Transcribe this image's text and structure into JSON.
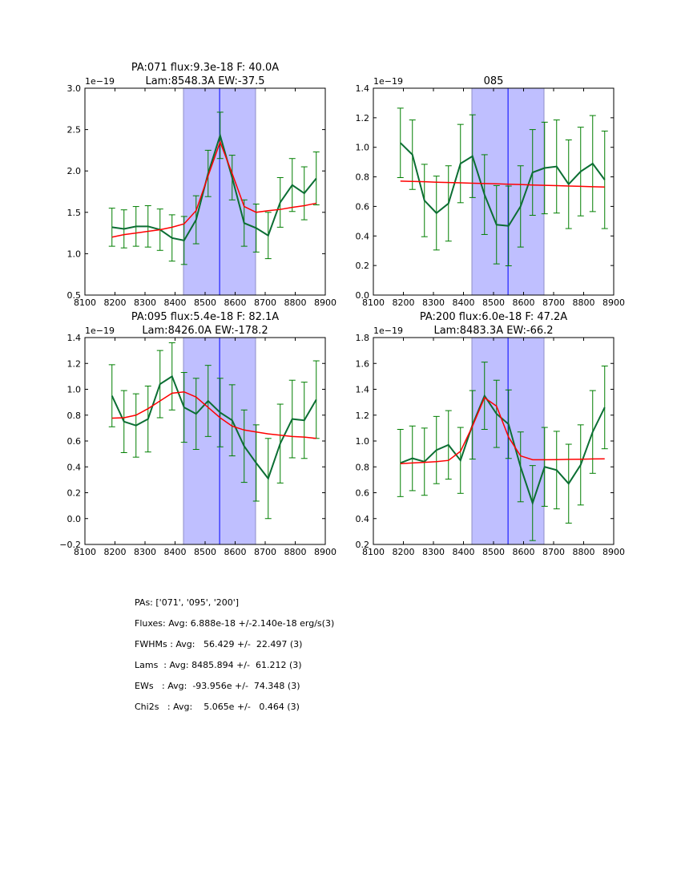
{
  "chart_data": [
    {
      "type": "line",
      "title": "PA:071 flux:9.3e-18 F: 40.0A\nLam:8548.3A EW:-37.5",
      "title_lines": [
        "PA:071 flux:9.3e-18 F: 40.0A",
        "Lam:8548.3A EW:-37.5"
      ],
      "offset_label": "1e−19",
      "xlim": [
        8100,
        8900
      ],
      "ylim": [
        0.5,
        3.0
      ],
      "xticks": [
        8100,
        8200,
        8300,
        8400,
        8500,
        8600,
        8700,
        8800,
        8900
      ],
      "yticks": [
        0.5,
        1.0,
        1.5,
        2.0,
        2.5,
        3.0
      ],
      "ytick_labels": [
        "0.5",
        "1.0",
        "1.5",
        "2.0",
        "2.5",
        "3.0"
      ],
      "line_center": 8548.3,
      "shade_range": [
        8428,
        8668
      ],
      "x": [
        8190,
        8230,
        8270,
        8310,
        8350,
        8390,
        8430,
        8470,
        8510,
        8550,
        8590,
        8630,
        8670,
        8710,
        8750,
        8790,
        8830,
        8870
      ],
      "series": [
        {
          "name": "data",
          "color": "#0b6e33",
          "values": [
            1.32,
            1.3,
            1.33,
            1.33,
            1.29,
            1.19,
            1.16,
            1.41,
            1.97,
            2.43,
            1.92,
            1.37,
            1.31,
            1.22,
            1.62,
            1.83,
            1.73,
            1.91
          ],
          "yerr": [
            0.23,
            0.23,
            0.24,
            0.25,
            0.25,
            0.28,
            0.29,
            0.29,
            0.28,
            0.28,
            0.27,
            0.28,
            0.29,
            0.28,
            0.3,
            0.32,
            0.32,
            0.32
          ]
        },
        {
          "name": "fit",
          "color": "#ff0000",
          "values": [
            1.2,
            1.23,
            1.25,
            1.27,
            1.29,
            1.32,
            1.36,
            1.52,
            1.94,
            2.35,
            1.97,
            1.57,
            1.5,
            1.52,
            1.535,
            1.56,
            1.58,
            1.61
          ]
        }
      ]
    },
    {
      "type": "line",
      "title": "085",
      "title_lines": [
        "085"
      ],
      "offset_label": "1e−19",
      "xlim": [
        8100,
        8900
      ],
      "ylim": [
        0.0,
        1.4
      ],
      "xticks": [
        8100,
        8200,
        8300,
        8400,
        8500,
        8600,
        8700,
        8800,
        8900
      ],
      "yticks": [
        0.0,
        0.2,
        0.4,
        0.6,
        0.8,
        1.0,
        1.2,
        1.4
      ],
      "ytick_labels": [
        "0.0",
        "0.2",
        "0.4",
        "0.6",
        "0.8",
        "1.0",
        "1.2",
        "1.4"
      ],
      "line_center": 8548.3,
      "shade_range": [
        8428,
        8668
      ],
      "x": [
        8190,
        8230,
        8270,
        8310,
        8350,
        8390,
        8430,
        8470,
        8510,
        8550,
        8590,
        8630,
        8670,
        8710,
        8750,
        8790,
        8830,
        8870
      ],
      "series": [
        {
          "name": "data",
          "color": "#0b6e33",
          "values": [
            1.03,
            0.95,
            0.64,
            0.555,
            0.62,
            0.89,
            0.94,
            0.68,
            0.476,
            0.468,
            0.6,
            0.83,
            0.86,
            0.87,
            0.75,
            0.836,
            0.89,
            0.78
          ],
          "yerr": [
            0.235,
            0.235,
            0.245,
            0.25,
            0.255,
            0.265,
            0.28,
            0.27,
            0.265,
            0.27,
            0.275,
            0.29,
            0.31,
            0.315,
            0.3,
            0.3,
            0.325,
            0.33
          ]
        },
        {
          "name": "fit",
          "color": "#ff0000",
          "values": [
            0.771,
            0.769,
            0.767,
            0.764,
            0.762,
            0.76,
            0.757,
            0.755,
            0.753,
            0.75,
            0.748,
            0.745,
            0.743,
            0.741,
            0.738,
            0.736,
            0.733,
            0.731
          ]
        }
      ]
    },
    {
      "type": "line",
      "title": "PA:095 flux:5.4e-18 F: 82.1A\nLam:8426.0A EW:-178.2",
      "title_lines": [
        "PA:095 flux:5.4e-18 F: 82.1A",
        "Lam:8426.0A EW:-178.2"
      ],
      "offset_label": "1e−19",
      "xlim": [
        8100,
        8900
      ],
      "ylim": [
        -0.2,
        1.4
      ],
      "xticks": [
        8100,
        8200,
        8300,
        8400,
        8500,
        8600,
        8700,
        8800,
        8900
      ],
      "yticks": [
        -0.2,
        0.0,
        0.2,
        0.4,
        0.6,
        0.8,
        1.0,
        1.2,
        1.4
      ],
      "ytick_labels": [
        "−0.2",
        "0.0",
        "0.2",
        "0.4",
        "0.6",
        "0.8",
        "1.0",
        "1.2",
        "1.4"
      ],
      "line_center": 8548.3,
      "shade_range": [
        8428,
        8668
      ],
      "x": [
        8190,
        8230,
        8270,
        8310,
        8350,
        8390,
        8430,
        8470,
        8510,
        8550,
        8590,
        8630,
        8670,
        8710,
        8750,
        8790,
        8830,
        8870
      ],
      "series": [
        {
          "name": "data",
          "color": "#0b6e33",
          "values": [
            0.95,
            0.75,
            0.72,
            0.77,
            1.04,
            1.1,
            0.86,
            0.81,
            0.91,
            0.82,
            0.76,
            0.56,
            0.43,
            0.31,
            0.58,
            0.77,
            0.76,
            0.92
          ],
          "yerr": [
            0.24,
            0.24,
            0.245,
            0.255,
            0.26,
            0.26,
            0.27,
            0.275,
            0.275,
            0.265,
            0.275,
            0.28,
            0.295,
            0.31,
            0.305,
            0.3,
            0.295,
            0.3
          ]
        },
        {
          "name": "fit",
          "color": "#ff0000",
          "values": [
            0.777,
            0.78,
            0.8,
            0.85,
            0.91,
            0.97,
            0.98,
            0.94,
            0.86,
            0.78,
            0.715,
            0.685,
            0.67,
            0.655,
            0.645,
            0.635,
            0.63,
            0.62
          ]
        }
      ]
    },
    {
      "type": "line",
      "title": "PA:200 flux:6.0e-18 F: 47.2A\nLam:8483.3A EW:-66.2",
      "title_lines": [
        "PA:200 flux:6.0e-18 F: 47.2A",
        "Lam:8483.3A EW:-66.2"
      ],
      "offset_label": "1e−19",
      "xlim": [
        8100,
        8900
      ],
      "ylim": [
        0.2,
        1.8
      ],
      "xticks": [
        8100,
        8200,
        8300,
        8400,
        8500,
        8600,
        8700,
        8800,
        8900
      ],
      "yticks": [
        0.2,
        0.4,
        0.6,
        0.8,
        1.0,
        1.2,
        1.4,
        1.6,
        1.8
      ],
      "ytick_labels": [
        "0.2",
        "0.4",
        "0.6",
        "0.8",
        "1.0",
        "1.2",
        "1.4",
        "1.6",
        "1.8"
      ],
      "line_center": 8548.3,
      "shade_range": [
        8428,
        8668
      ],
      "x": [
        8190,
        8230,
        8270,
        8310,
        8350,
        8390,
        8430,
        8470,
        8510,
        8550,
        8590,
        8630,
        8670,
        8710,
        8750,
        8790,
        8830,
        8870
      ],
      "series": [
        {
          "name": "data",
          "color": "#0b6e33",
          "values": [
            0.83,
            0.866,
            0.84,
            0.93,
            0.97,
            0.85,
            1.125,
            1.35,
            1.21,
            1.13,
            0.8,
            0.52,
            0.8,
            0.775,
            0.67,
            0.815,
            1.07,
            1.26
          ],
          "yerr": [
            0.26,
            0.25,
            0.26,
            0.26,
            0.265,
            0.255,
            0.265,
            0.26,
            0.26,
            0.265,
            0.27,
            0.29,
            0.305,
            0.3,
            0.305,
            0.31,
            0.32,
            0.32
          ]
        },
        {
          "name": "fit",
          "color": "#ff0000",
          "values": [
            0.825,
            0.83,
            0.835,
            0.84,
            0.85,
            0.92,
            1.115,
            1.335,
            1.27,
            1.03,
            0.885,
            0.855,
            0.855,
            0.856,
            0.858,
            0.859,
            0.861,
            0.862
          ]
        }
      ]
    }
  ],
  "summary": {
    "pas": "PAs: ['071', '095', '200']",
    "fluxes": "Fluxes: Avg: 6.888e-18 +/-2.140e-18 erg/s(3)",
    "fwhms": "FWHMs : Avg:   56.429 +/-  22.497 (3)",
    "lams": "Lams  : Avg: 8485.894 +/-  61.212 (3)",
    "ews": "EWs   : Avg:  -93.956e +/-  74.348 (3)",
    "chi2s": "Chi2s   : Avg:    5.065e +/-   0.464 (3)"
  },
  "colors": {
    "shade": "#bfbfff",
    "shade_edge": "#8f8fc8",
    "center_line": "#0000ff",
    "errorbar": "#007f00"
  }
}
